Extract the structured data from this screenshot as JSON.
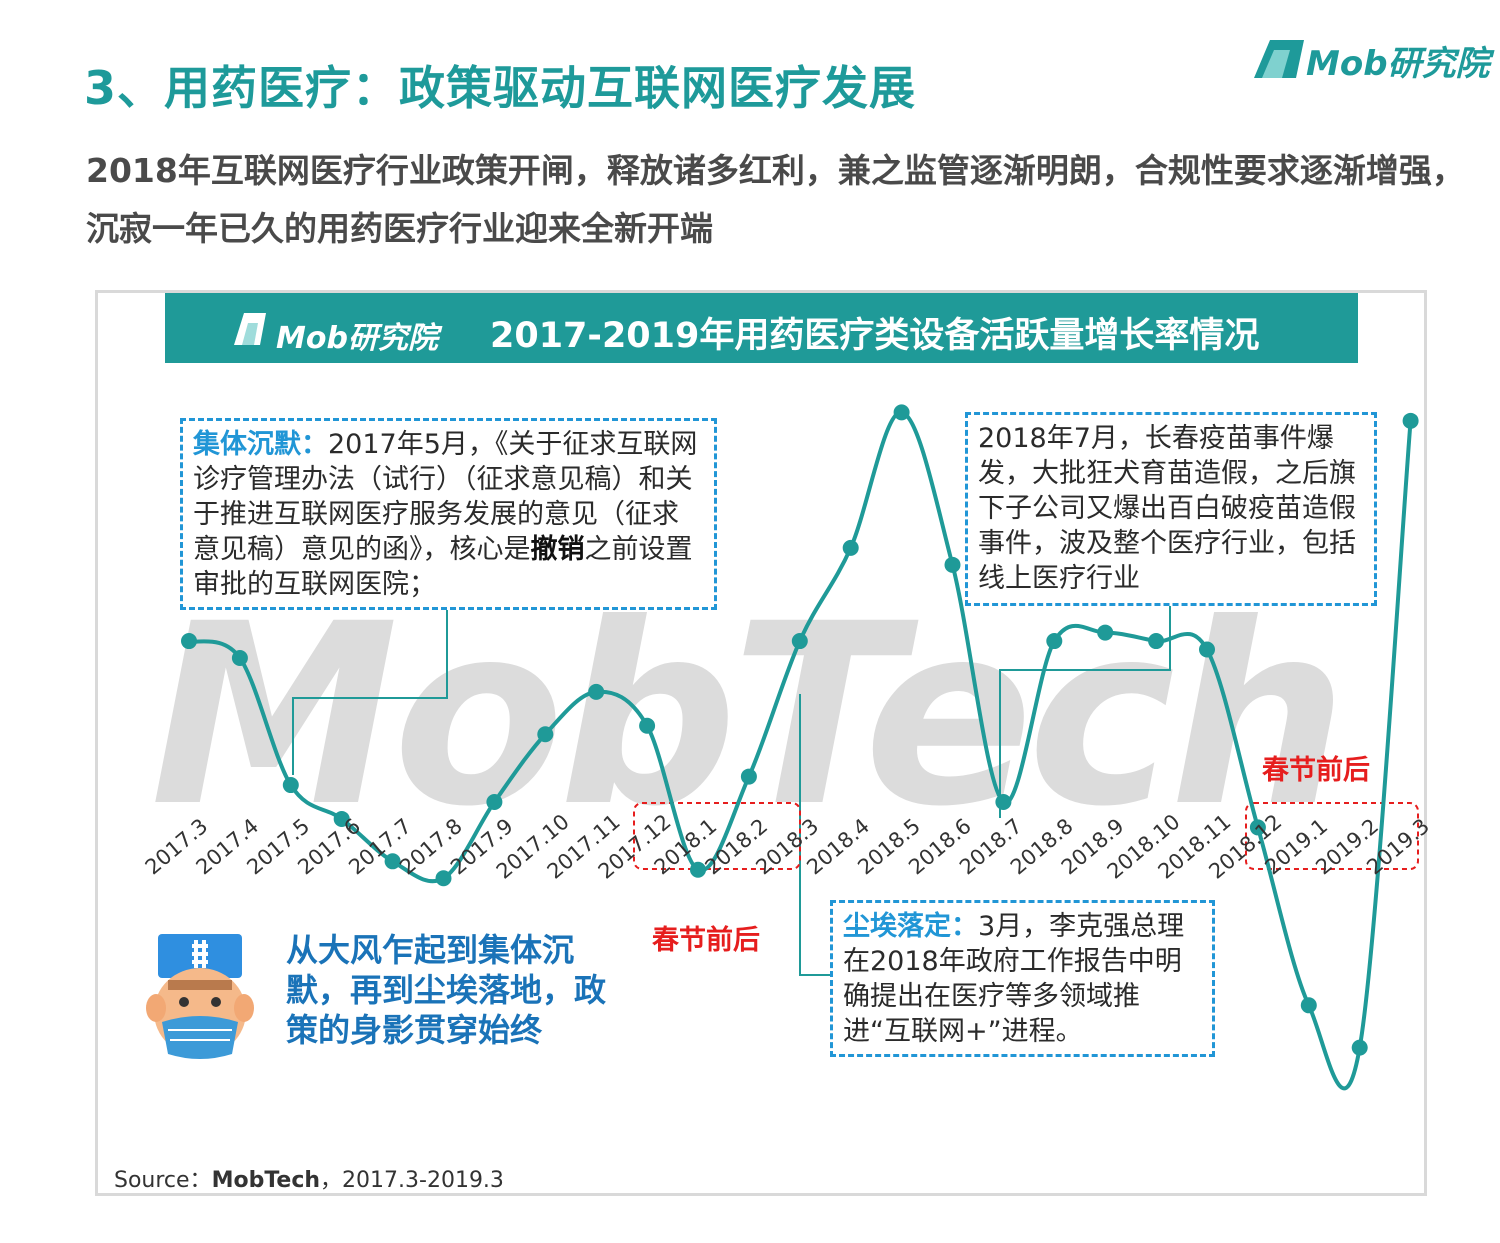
{
  "header": {
    "title": "3、用药医疗：政策驱动互联网医疗发展",
    "subtitle": "2018年互联网医疗行业政策开闸，释放诸多红利，兼之监管逐渐明朗，合规性要求逐渐增强，沉寂一年已久的用药医疗行业迎来全新开端",
    "brand": "Mob研究院"
  },
  "banner": {
    "logo_text": "Mob研究院",
    "title": "2017-2019年用药医疗类设备活跃量增长率情况"
  },
  "watermark": "MobTech",
  "callouts": {
    "left": {
      "title": "集体沉默：",
      "body1": "2017年5月，《关于征求互联网诊疗管理办法（试行）（征求意见稿）和关于推进互联网医疗服务发展的意见（征求意见稿）意见的函》，核心是",
      "strong": "撤销",
      "body2": "之前设置审批的互联网医院；"
    },
    "right": {
      "body": "2018年7月，长春疫苗事件爆发，大批狂犬育苗造假，之后旗下子公司又爆出百白破疫苗造假事件，波及整个医疗行业，包括线上医疗行业"
    },
    "bottom": {
      "title": "尘埃落定：",
      "body": "3月，李克强总理在2018年政府工作报告中明确提出在医疗等多领域推进“互联网+”进程。"
    }
  },
  "labels": {
    "spring_left": "春节前后",
    "spring_right": "春节前后",
    "slogan": "从大风乍起到集体沉默，再到尘埃落地，政策的身影贯穿始终"
  },
  "source": {
    "prefix": "Source：",
    "strong": "MobTech",
    "suffix": "，2017.3-2019.3"
  },
  "colors": {
    "teal": "#1f9a98",
    "blue": "#2196d6",
    "red": "#e61e1e"
  },
  "chart_data": {
    "type": "line",
    "title": "2017-2019年用药医疗类设备活跃量增长率情况",
    "categories": [
      "2017.3",
      "2017.4",
      "2017.5",
      "2017.6",
      "2017.7",
      "2017.8",
      "2017.9",
      "2017.10",
      "2017.11",
      "2017.12",
      "2018.1",
      "2018.2",
      "2018.3",
      "2018.4",
      "2018.5",
      "2018.6",
      "2018.7",
      "2018.8",
      "2018.9",
      "2018.10",
      "2018.11",
      "2018.12",
      "2019.1",
      "2019.2",
      "2019.3"
    ],
    "series": [
      {
        "values": [
          1.3,
          1.1,
          -0.4,
          -0.8,
          -1.3,
          -1.5,
          -0.6,
          0.2,
          0.7,
          0.3,
          -1.4,
          -0.3,
          1.3,
          2.4,
          4.0,
          2.2,
          -0.6,
          1.3,
          1.4,
          1.3,
          1.2,
          -0.9,
          -3.0,
          -3.5,
          3.9
        ]
      }
    ],
    "ylim": [
      -4,
      4.5
    ],
    "grid": false,
    "legend": "none"
  }
}
